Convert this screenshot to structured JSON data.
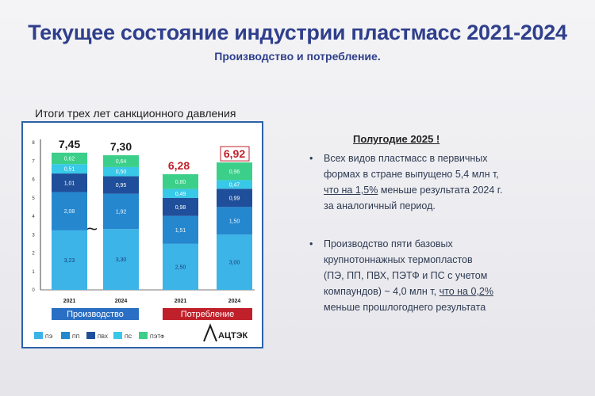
{
  "header": {
    "title": "Текущее состояние  индустрии  пластмасс 2021-2024",
    "subtitle": "Производство и потребление."
  },
  "panel": {
    "title": "Итоги трех лет санкционного давления",
    "logo_text": "АЦТЭК"
  },
  "chart_data": {
    "type": "bar",
    "stacked": true,
    "categories": [
      "2021",
      "2024",
      "2021",
      "2024"
    ],
    "groups": [
      {
        "label": "Производство",
        "color": "#2a6fc3"
      },
      {
        "label": "Потребление",
        "color": "#c0202a"
      }
    ],
    "series": [
      {
        "name": "ПЭ",
        "color": "#3cb4e8",
        "values": [
          3.23,
          3.3,
          2.5,
          3.0
        ]
      },
      {
        "name": "ПП",
        "color": "#2588cf",
        "values": [
          2.08,
          1.92,
          1.51,
          1.5
        ]
      },
      {
        "name": "ПВХ",
        "color": "#1f4f9a",
        "values": [
          1.01,
          0.95,
          0.98,
          0.99
        ]
      },
      {
        "name": "ПС",
        "color": "#38c8e8",
        "values": [
          0.51,
          0.5,
          0.49,
          0.47
        ]
      },
      {
        "name": "ПЭТФ",
        "color": "#3ccf8a",
        "values": [
          0.62,
          0.64,
          0.8,
          0.96
        ]
      }
    ],
    "value_labels": [
      [
        "3,23",
        "3,30",
        "2,50",
        "3,00"
      ],
      [
        "2,08",
        "1,92",
        "1,51",
        "1,50"
      ],
      [
        "1,01",
        "0,95",
        "0,98",
        "0,99"
      ],
      [
        "0,51",
        "0,50",
        "0,49",
        "0,47"
      ],
      [
        "0,62",
        "0,64",
        "0,80",
        "0,96"
      ]
    ],
    "totals": [
      "7,45",
      "7,30",
      "6,28",
      "6,92"
    ],
    "total_colors": [
      "#1a1a1a",
      "#1a1a1a",
      "#c0202a",
      "#c0202a"
    ],
    "yticks": [
      0,
      1,
      2,
      3,
      4,
      5,
      6,
      7,
      8
    ],
    "ylim": [
      0,
      8
    ],
    "gap_symbol": "~",
    "legend_position": "bottom"
  },
  "right": {
    "heading": "Полугодие 2025 !",
    "bullet1": {
      "line1": "Всех видов пластмасс в первичных",
      "line2": "формах  в стране  выпущено 5,4 млн т,",
      "line3_u": "что на 1,5%",
      "line3_rest": " меньше результата 2024 г.",
      "line4": "за аналогичный период."
    },
    "bullet2": {
      "line1": "Производство пяти базовых",
      "line2": "крупнотоннажных термопластов",
      "line3": "(ПЭ, ПП, ПВХ, ПЭТФ и ПС с учетом",
      "line4_a": "компаундов) ~ 4,0 млн т, ",
      "line4_u": "что на 0,2%",
      "line5": "меньше прошлогоднего результата"
    }
  }
}
